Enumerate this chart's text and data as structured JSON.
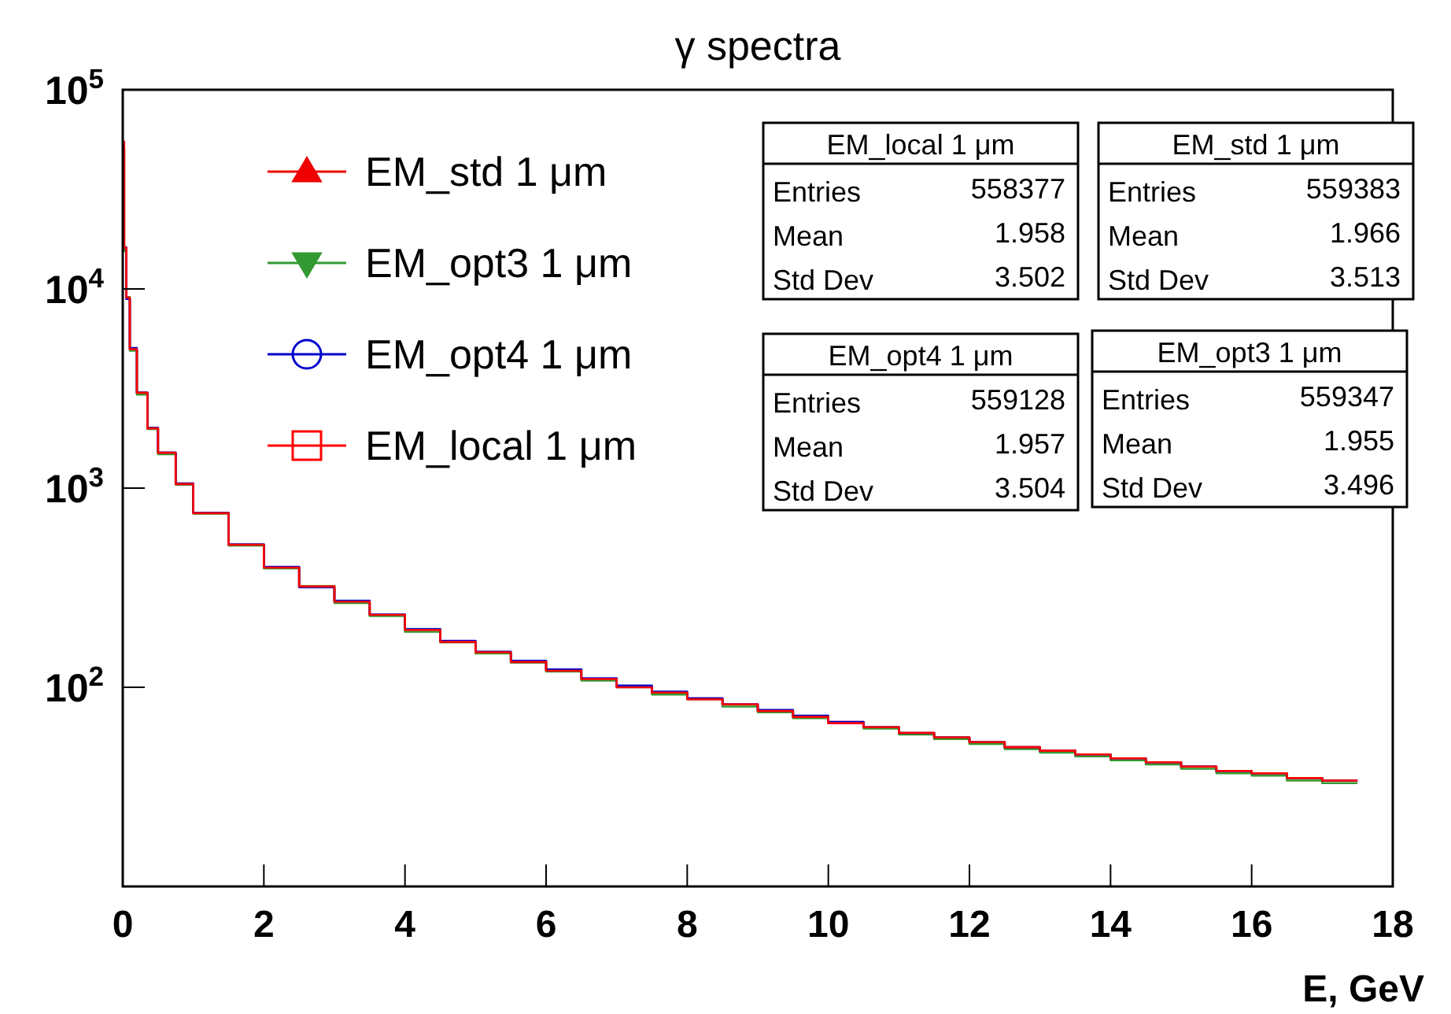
{
  "chart_data": {
    "type": "histogram",
    "title": "γ spectra",
    "xlabel": "E, GeV",
    "bins": [
      0,
      0.02,
      0.05,
      0.1,
      0.2,
      0.35,
      0.5,
      0.75,
      1,
      1.5,
      2,
      2.5,
      3,
      3.5,
      4,
      4.5,
      5,
      5.5,
      6,
      6.5,
      7,
      7.5,
      8,
      8.5,
      9,
      9.5,
      10,
      10.5,
      11,
      11.5,
      12,
      12.5,
      13,
      13.5,
      14,
      14.5,
      15,
      15.5,
      16,
      16.5,
      17,
      17.5
    ],
    "series": [
      {
        "name": "EM_std 1 μm",
        "color": "#ee0000",
        "marker": "triangle",
        "values": [
          50000,
          16000,
          9000,
          5000,
          3000,
          2000,
          1500,
          1050,
          750,
          520,
          400,
          320,
          270,
          230,
          195,
          170,
          150,
          135,
          122,
          110,
          101,
          94,
          88,
          82,
          76,
          71,
          67,
          63,
          59,
          56,
          53,
          50,
          48,
          46,
          44,
          42,
          40,
          38,
          37,
          35,
          34
        ]
      },
      {
        "name": "EM_opt3 1 μm",
        "color": "#339933",
        "marker": "triangle-down",
        "values": [
          52000,
          15500,
          9100,
          4900,
          2950,
          1980,
          1480,
          1040,
          745,
          515,
          395,
          322,
          265,
          228,
          190,
          168,
          148,
          133,
          120,
          108,
          100,
          92,
          87,
          80,
          75,
          70,
          66,
          62,
          58,
          55,
          52,
          49,
          47,
          45,
          43,
          41,
          39,
          37,
          36,
          34,
          33
        ]
      },
      {
        "name": "EM_opt4 1 μm",
        "color": "#0000cc",
        "marker": "circle",
        "values": [
          51000,
          16200,
          8900,
          5050,
          3020,
          2010,
          1510,
          1055,
          752,
          522,
          402,
          318,
          272,
          232,
          196,
          171,
          151,
          136,
          123,
          111,
          102,
          95,
          88,
          82,
          77,
          72,
          67,
          63,
          59,
          56,
          53,
          50,
          48,
          46,
          44,
          42,
          40,
          38,
          37,
          35,
          34
        ]
      },
      {
        "name": "EM_local 1 μm",
        "color": "#ff0000",
        "marker": "square",
        "values": [
          55000,
          16100,
          9050,
          4980,
          3010,
          1995,
          1505,
          1048,
          748,
          519,
          399,
          321,
          269,
          231,
          194,
          169,
          150,
          134,
          121,
          110,
          100,
          94,
          87,
          82,
          76,
          71,
          66,
          63,
          59,
          56,
          53,
          50,
          48,
          46,
          44,
          42,
          40,
          38,
          37,
          35,
          34
        ]
      }
    ],
    "xlim": [
      0,
      18
    ],
    "xticks": [
      0,
      2,
      4,
      6,
      8,
      10,
      12,
      14,
      16,
      18
    ],
    "ylim": [
      10,
      100000
    ],
    "log": true,
    "yticks": [
      {
        "value": 100,
        "label": "10$^{2}$"
      },
      {
        "value": 1000,
        "label": "10$^{3}$"
      },
      {
        "value": 10000,
        "label": "10$^{4}$"
      },
      {
        "value": 100000,
        "label": "10$^{5}$"
      }
    ],
    "grid": false,
    "legend": "top left",
    "annotations": [
      "EM_local 1 μm",
      "Entries",
      "558377",
      "Mean",
      "1.958",
      "Std Dev",
      "3.502",
      "EM_std 1 μm",
      "Entries",
      "559383",
      "Mean",
      "1.966",
      "Std Dev",
      "3.513",
      "EM_opt4 1 μm",
      "Entries",
      "559128",
      "Mean",
      "1.957",
      "Std Dev",
      "3.504",
      "EM_opt3 1 μm",
      "Entries",
      "559347",
      "Mean",
      "1.955",
      "Std Dev",
      "3.496"
    ]
  }
}
